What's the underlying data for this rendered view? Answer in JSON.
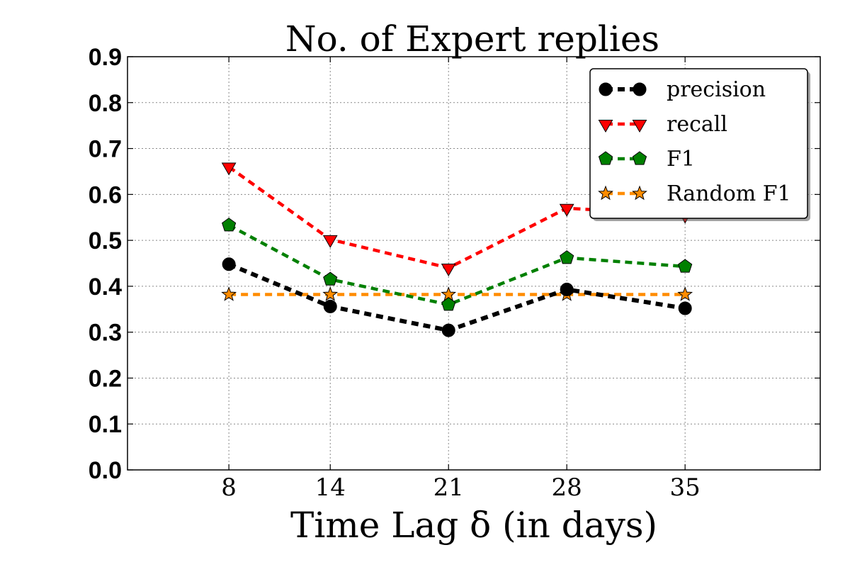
{
  "chart_data": {
    "type": "line",
    "title": "No. of Expert replies",
    "xlabel": "Time Lag δ (in days)",
    "ylabel": "",
    "x": [
      8,
      14,
      21,
      28,
      35
    ],
    "x_tick_labels": [
      "8",
      "14",
      "21",
      "28",
      "35"
    ],
    "xlim": [
      2,
      43
    ],
    "ylim": [
      0.0,
      0.9
    ],
    "y_ticks": [
      0.0,
      0.1,
      0.2,
      0.3,
      0.4,
      0.5,
      0.6,
      0.7,
      0.8,
      0.9
    ],
    "y_tick_labels": [
      "0.0",
      "0.1",
      "0.2",
      "0.3",
      "0.4",
      "0.5",
      "0.6",
      "0.7",
      "0.8",
      "0.9"
    ],
    "grid": true,
    "legend_position": "top-right",
    "series": [
      {
        "name": "precision",
        "marker": "circle",
        "color": "#000000",
        "values": [
          0.448,
          0.356,
          0.304,
          0.393,
          0.352
        ]
      },
      {
        "name": "recall",
        "marker": "triangle-down",
        "color": "#ff0000",
        "values": [
          0.66,
          0.502,
          0.44,
          0.57,
          0.555
        ]
      },
      {
        "name": "F1",
        "marker": "pentagon",
        "color": "#008000",
        "values": [
          0.533,
          0.415,
          0.36,
          0.462,
          0.443
        ]
      },
      {
        "name": "Random F1",
        "marker": "star",
        "color": "#ff8c00",
        "values": [
          0.382,
          0.382,
          0.382,
          0.382,
          0.382
        ]
      }
    ]
  }
}
